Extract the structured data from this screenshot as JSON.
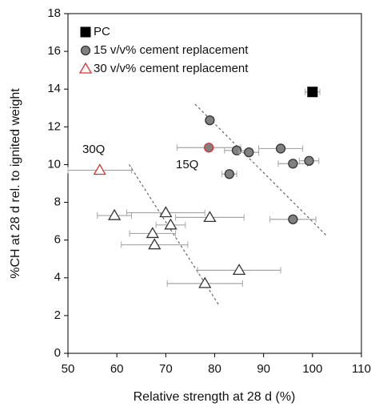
{
  "chart_data": {
    "type": "scatter",
    "x_label": "Relative strength at 28 d (%)",
    "y_label": "%CH at 28 d rel. to ignited weight",
    "xlim": [
      50,
      110
    ],
    "ylim": [
      0,
      18
    ],
    "xticks": [
      50,
      60,
      70,
      80,
      90,
      100,
      110
    ],
    "yticks": [
      0,
      2,
      4,
      6,
      8,
      10,
      12,
      14,
      16,
      18
    ],
    "legend": "top-left",
    "error_bar_color": "#a6a6a6",
    "series": [
      {
        "name": "PC",
        "marker": "square",
        "color": "#000000",
        "edge_colors": [
          "#000000"
        ],
        "x": [
          100
        ],
        "y": [
          13.85
        ],
        "xerr": [
          1.5
        ]
      },
      {
        "name": "15 v/v% cement replacement",
        "marker": "circle",
        "color": "#808080",
        "edge_colors": [
          "#333333",
          "#e03030",
          "#333333",
          "#333333",
          "#333333",
          "#333333",
          "#333333",
          "#333333",
          "#333333"
        ],
        "x": [
          79,
          78.8,
          84.5,
          87,
          93.5,
          96,
          99.3,
          83,
          96
        ],
        "y": [
          12.35,
          10.9,
          10.75,
          10.65,
          10.85,
          10.05,
          10.2,
          9.5,
          7.1
        ],
        "xerr": [
          0.8,
          6.5,
          2.5,
          2,
          4.5,
          3,
          2,
          1.5,
          4.7
        ]
      },
      {
        "name": "30 v/v% cement replacement",
        "marker": "triangle",
        "color": "#ffffff",
        "edge_colors": [
          "#e03030",
          "#333333",
          "#333333",
          "#333333",
          "#333333",
          "#333333",
          "#333333",
          "#333333",
          "#333333"
        ],
        "x": [
          56.5,
          59.5,
          70,
          79,
          71,
          67.3,
          67.7,
          85,
          78
        ],
        "y": [
          9.7,
          7.3,
          7.45,
          7.2,
          6.8,
          6.35,
          5.75,
          4.4,
          3.7
        ],
        "xerr": [
          6.5,
          3.5,
          8,
          7,
          3,
          4.7,
          6.8,
          8.5,
          7.7
        ]
      }
    ],
    "trend_lines": [
      {
        "label": "15Q",
        "x": [
          76,
          103
        ],
        "y": [
          13.2,
          6.2
        ]
      },
      {
        "label": "30Q",
        "x": [
          62.5,
          81
        ],
        "y": [
          10,
          2.5
        ]
      }
    ]
  }
}
